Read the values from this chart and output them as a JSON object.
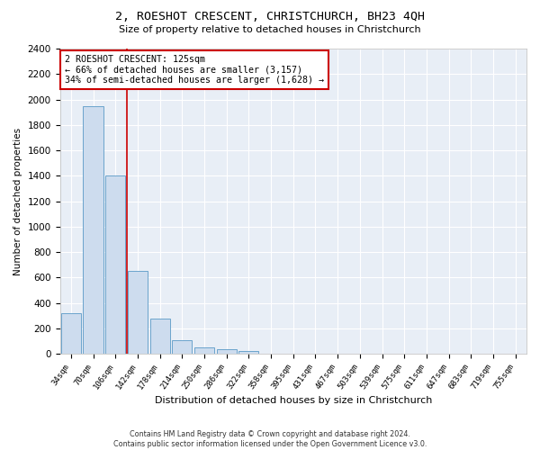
{
  "title": "2, ROESHOT CRESCENT, CHRISTCHURCH, BH23 4QH",
  "subtitle": "Size of property relative to detached houses in Christchurch",
  "xlabel": "Distribution of detached houses by size in Christchurch",
  "ylabel": "Number of detached properties",
  "bar_color": "#cddcee",
  "bar_edge_color": "#6ba3cc",
  "background_color": "#e8eef6",
  "grid_color": "white",
  "annotation_box_color": "#cc0000",
  "vline_color": "#cc0000",
  "vline_x": 2.5,
  "annotation_text": "2 ROESHOT CRESCENT: 125sqm\n← 66% of detached houses are smaller (3,157)\n34% of semi-detached houses are larger (1,628) →",
  "categories": [
    "34sqm",
    "70sqm",
    "106sqm",
    "142sqm",
    "178sqm",
    "214sqm",
    "250sqm",
    "286sqm",
    "322sqm",
    "358sqm",
    "395sqm",
    "431sqm",
    "467sqm",
    "503sqm",
    "539sqm",
    "575sqm",
    "611sqm",
    "647sqm",
    "683sqm",
    "719sqm",
    "755sqm"
  ],
  "bar_heights": [
    320,
    1950,
    1400,
    650,
    280,
    105,
    50,
    35,
    25,
    0,
    0,
    0,
    0,
    0,
    0,
    0,
    0,
    0,
    0,
    0,
    0
  ],
  "ylim": [
    0,
    2400
  ],
  "yticks": [
    0,
    200,
    400,
    600,
    800,
    1000,
    1200,
    1400,
    1600,
    1800,
    2000,
    2200,
    2400
  ],
  "footnote": "Contains HM Land Registry data © Crown copyright and database right 2024.\nContains public sector information licensed under the Open Government Licence v3.0."
}
